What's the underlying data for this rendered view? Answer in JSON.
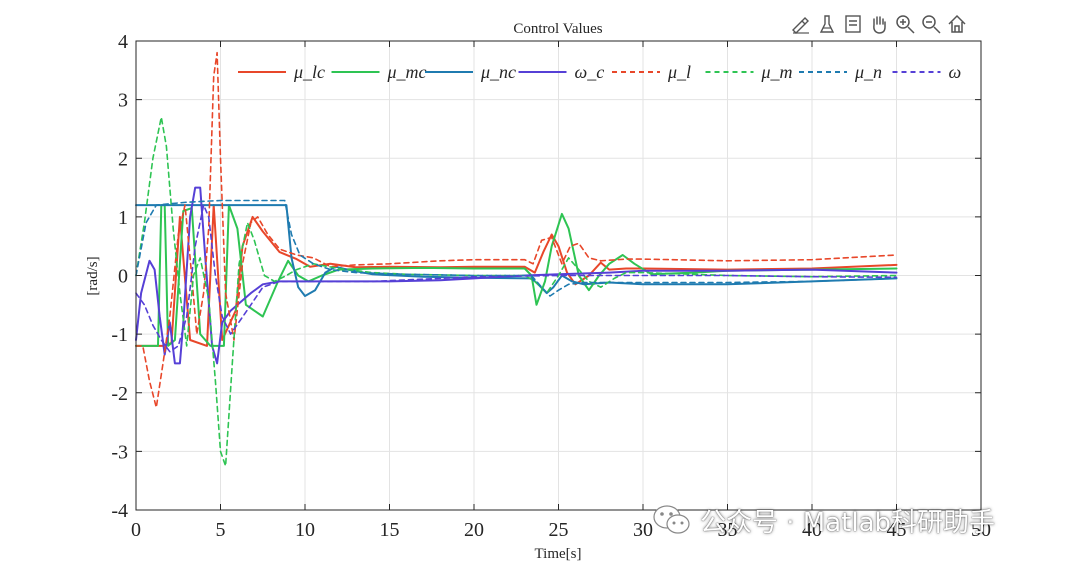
{
  "toolbar": {
    "icons": [
      "brush-data-icon",
      "clear-brush-icon",
      "data-cursor-icon",
      "pan-hand-icon",
      "zoom-in-icon",
      "zoom-out-icon",
      "home-restore-icon"
    ]
  },
  "watermark": {
    "text": "公众号 · Matlab科研助手"
  },
  "colors": {
    "mu_l": "#e8472a",
    "mu_m": "#2ec453",
    "mu_n": "#1f7bb0",
    "omega": "#5640d6"
  },
  "chart_data": {
    "type": "line",
    "title": "Control Values",
    "xlabel": "Time[s]",
    "ylabel": "[rad/s]",
    "xlim": [
      0,
      50
    ],
    "ylim": [
      -4,
      4
    ],
    "grid": true,
    "legend_position": "top",
    "x_ticks": [
      "0",
      "5",
      "10",
      "15",
      "20",
      "25",
      "30",
      "35",
      "40",
      "45",
      "50"
    ],
    "y_ticks": [
      "4",
      "3",
      "2",
      "1",
      "0",
      "-1",
      "-2",
      "-3",
      "-4"
    ],
    "series": [
      {
        "name": "μ_lc",
        "color_key": "mu_l",
        "dash": false,
        "points": [
          [
            0,
            -1.2
          ],
          [
            1.6,
            -1.2
          ],
          [
            2.1,
            -1.15
          ],
          [
            2.6,
            1.0
          ],
          [
            3.2,
            -1.1
          ],
          [
            4.2,
            -1.2
          ],
          [
            4.6,
            1.2
          ],
          [
            5.1,
            -1.1
          ],
          [
            5.9,
            -0.6
          ],
          [
            6.3,
            0.5
          ],
          [
            6.9,
            1.0
          ],
          [
            7.5,
            0.75
          ],
          [
            8.5,
            0.4
          ],
          [
            9.5,
            0.28
          ],
          [
            10.3,
            0.15
          ],
          [
            11.5,
            0.2
          ],
          [
            13,
            0.14
          ],
          [
            15,
            0.15
          ],
          [
            18,
            0.14
          ],
          [
            20,
            0.15
          ],
          [
            23,
            0.15
          ],
          [
            23.6,
            0.05
          ],
          [
            24.1,
            0.4
          ],
          [
            24.6,
            0.7
          ],
          [
            25,
            0.5
          ],
          [
            25.5,
            0.05
          ],
          [
            26,
            -0.15
          ],
          [
            26.8,
            0.0
          ],
          [
            27.5,
            0.22
          ],
          [
            28,
            0.1
          ],
          [
            29,
            0.12
          ],
          [
            30,
            0.12
          ],
          [
            35,
            0.1
          ],
          [
            40,
            0.12
          ],
          [
            45,
            0.18
          ]
        ]
      },
      {
        "name": "μ_mc",
        "color_key": "mu_m",
        "dash": false,
        "points": [
          [
            0,
            -1.2
          ],
          [
            1.3,
            -1.2
          ],
          [
            1.5,
            1.2
          ],
          [
            1.7,
            1.2
          ],
          [
            1.9,
            -1.2
          ],
          [
            2.3,
            -1.1
          ],
          [
            2.8,
            1.1
          ],
          [
            3.3,
            1.15
          ],
          [
            3.8,
            -1.0
          ],
          [
            4.4,
            -1.2
          ],
          [
            5.2,
            -1.2
          ],
          [
            5.5,
            1.2
          ],
          [
            6.0,
            0.8
          ],
          [
            6.5,
            -0.5
          ],
          [
            7.5,
            -0.7
          ],
          [
            8.4,
            -0.1
          ],
          [
            9.0,
            0.25
          ],
          [
            9.6,
            0.0
          ],
          [
            10.2,
            -0.1
          ],
          [
            11,
            0.0
          ],
          [
            12,
            0.1
          ],
          [
            14,
            0.12
          ],
          [
            17,
            0.13
          ],
          [
            20,
            0.12
          ],
          [
            23,
            0.12
          ],
          [
            23.4,
            0.0
          ],
          [
            23.7,
            -0.5
          ],
          [
            24.2,
            -0.1
          ],
          [
            24.6,
            0.5
          ],
          [
            25.2,
            1.05
          ],
          [
            25.6,
            0.8
          ],
          [
            26.2,
            0.0
          ],
          [
            26.8,
            -0.25
          ],
          [
            27.4,
            0.0
          ],
          [
            28,
            0.2
          ],
          [
            28.8,
            0.35
          ],
          [
            29.5,
            0.2
          ],
          [
            30.5,
            0.02
          ],
          [
            33,
            0.05
          ],
          [
            35,
            0.08
          ],
          [
            40,
            0.1
          ],
          [
            45,
            0.12
          ]
        ]
      },
      {
        "name": "μ_nc",
        "color_key": "mu_n",
        "dash": false,
        "points": [
          [
            0,
            1.2
          ],
          [
            4,
            1.2
          ],
          [
            5,
            1.2
          ],
          [
            8.9,
            1.2
          ],
          [
            9.2,
            0.3
          ],
          [
            9.6,
            -0.2
          ],
          [
            10.0,
            -0.35
          ],
          [
            10.6,
            -0.25
          ],
          [
            11.2,
            0.05
          ],
          [
            11.8,
            0.15
          ],
          [
            12.5,
            0.1
          ],
          [
            14,
            0.02
          ],
          [
            17,
            -0.02
          ],
          [
            20,
            -0.04
          ],
          [
            23.4,
            -0.05
          ],
          [
            23.8,
            -0.15
          ],
          [
            24.3,
            -0.3
          ],
          [
            24.7,
            -0.2
          ],
          [
            25.2,
            0.0
          ],
          [
            25.8,
            -0.1
          ],
          [
            26.5,
            -0.15
          ],
          [
            28,
            -0.12
          ],
          [
            30,
            -0.15
          ],
          [
            35,
            -0.15
          ],
          [
            40,
            -0.1
          ],
          [
            45,
            -0.05
          ]
        ]
      },
      {
        "name": "ω_c",
        "color_key": "omega",
        "dash": false,
        "points": [
          [
            0,
            -1.1
          ],
          [
            0.3,
            -0.3
          ],
          [
            0.8,
            0.25
          ],
          [
            1.1,
            0.1
          ],
          [
            1.4,
            -0.7
          ],
          [
            1.7,
            -1.35
          ],
          [
            2.0,
            -0.8
          ],
          [
            2.3,
            -1.5
          ],
          [
            2.6,
            -1.5
          ],
          [
            2.8,
            -0.8
          ],
          [
            3.2,
            1.0
          ],
          [
            3.5,
            1.5
          ],
          [
            3.8,
            1.5
          ],
          [
            4.1,
            0.3
          ],
          [
            4.5,
            -1.2
          ],
          [
            4.8,
            -1.5
          ],
          [
            5.1,
            -0.8
          ],
          [
            5.6,
            -0.6
          ],
          [
            6.2,
            -0.45
          ],
          [
            6.8,
            -0.3
          ],
          [
            7.5,
            -0.15
          ],
          [
            8.5,
            -0.1
          ],
          [
            10,
            -0.1
          ],
          [
            12,
            -0.1
          ],
          [
            15,
            -0.1
          ],
          [
            18,
            -0.08
          ],
          [
            20,
            -0.05
          ],
          [
            23,
            0.0
          ],
          [
            25,
            0.02
          ],
          [
            28,
            0.05
          ],
          [
            30,
            0.08
          ],
          [
            35,
            0.08
          ],
          [
            40,
            0.1
          ],
          [
            45,
            0.05
          ]
        ]
      },
      {
        "name": "μ_l",
        "color_key": "mu_l",
        "dash": true,
        "points": [
          [
            0,
            -1.2
          ],
          [
            0.4,
            -1.2
          ],
          [
            0.8,
            -1.8
          ],
          [
            1.2,
            -2.25
          ],
          [
            1.6,
            -1.5
          ],
          [
            2.0,
            -0.7
          ],
          [
            2.5,
            0.7
          ],
          [
            2.9,
            1.2
          ],
          [
            3.2,
            0.3
          ],
          [
            3.6,
            -1.0
          ],
          [
            4.0,
            -0.3
          ],
          [
            4.3,
            0.8
          ],
          [
            4.6,
            3.4
          ],
          [
            4.8,
            3.8
          ],
          [
            5.0,
            2.0
          ],
          [
            5.3,
            -0.3
          ],
          [
            5.8,
            -1.1
          ],
          [
            6.3,
            0.2
          ],
          [
            6.8,
            0.9
          ],
          [
            7.2,
            1.0
          ],
          [
            7.8,
            0.7
          ],
          [
            8.5,
            0.45
          ],
          [
            9.5,
            0.35
          ],
          [
            10.5,
            0.3
          ],
          [
            11.5,
            0.15
          ],
          [
            13,
            0.18
          ],
          [
            15,
            0.2
          ],
          [
            18,
            0.25
          ],
          [
            20,
            0.27
          ],
          [
            23,
            0.27
          ],
          [
            23.5,
            0.2
          ],
          [
            24,
            0.6
          ],
          [
            24.6,
            0.65
          ],
          [
            25.2,
            0.2
          ],
          [
            25.7,
            0.5
          ],
          [
            26.2,
            0.55
          ],
          [
            26.8,
            0.3
          ],
          [
            27.5,
            0.25
          ],
          [
            29,
            0.28
          ],
          [
            30,
            0.28
          ],
          [
            35,
            0.25
          ],
          [
            40,
            0.27
          ],
          [
            45,
            0.35
          ]
        ]
      },
      {
        "name": "μ_m",
        "color_key": "mu_m",
        "dash": true,
        "points": [
          [
            0,
            0.0
          ],
          [
            0.5,
            0.9
          ],
          [
            1.0,
            2.0
          ],
          [
            1.5,
            2.7
          ],
          [
            1.8,
            2.2
          ],
          [
            2.2,
            0.8
          ],
          [
            2.6,
            -0.3
          ],
          [
            3.0,
            -1.2
          ],
          [
            3.4,
            0.0
          ],
          [
            3.8,
            0.3
          ],
          [
            4.3,
            -0.4
          ],
          [
            4.7,
            -1.8
          ],
          [
            5.0,
            -3.0
          ],
          [
            5.3,
            -3.25
          ],
          [
            5.7,
            -1.5
          ],
          [
            6.1,
            0.2
          ],
          [
            6.6,
            0.9
          ],
          [
            7.0,
            0.6
          ],
          [
            7.6,
            0.0
          ],
          [
            8.2,
            -0.1
          ],
          [
            8.9,
            0.0
          ],
          [
            9.5,
            0.1
          ],
          [
            10.5,
            0.2
          ],
          [
            12,
            0.12
          ],
          [
            14,
            0.05
          ],
          [
            16,
            0.02
          ],
          [
            20,
            0.0
          ],
          [
            23,
            0.0
          ],
          [
            23.6,
            -0.1
          ],
          [
            24.3,
            -0.3
          ],
          [
            25,
            0.0
          ],
          [
            25.6,
            0.3
          ],
          [
            26.2,
            0.1
          ],
          [
            26.8,
            -0.1
          ],
          [
            27.5,
            -0.2
          ],
          [
            28.3,
            -0.05
          ],
          [
            29,
            0.05
          ],
          [
            30,
            0.05
          ],
          [
            35,
            0.0
          ],
          [
            40,
            -0.02
          ],
          [
            45,
            0.0
          ]
        ]
      },
      {
        "name": "μ_n",
        "color_key": "mu_n",
        "dash": true,
        "points": [
          [
            0,
            0.0
          ],
          [
            0.6,
            0.9
          ],
          [
            1.2,
            1.2
          ],
          [
            3,
            1.25
          ],
          [
            5,
            1.28
          ],
          [
            8.8,
            1.28
          ],
          [
            9.2,
            0.7
          ],
          [
            9.7,
            0.35
          ],
          [
            10.5,
            0.2
          ],
          [
            11.5,
            0.1
          ],
          [
            13,
            0.05
          ],
          [
            16,
            0.02
          ],
          [
            20,
            0.0
          ],
          [
            23.4,
            0.0
          ],
          [
            24,
            -0.2
          ],
          [
            24.5,
            -0.35
          ],
          [
            25,
            -0.25
          ],
          [
            25.6,
            -0.15
          ],
          [
            26.5,
            -0.12
          ],
          [
            28,
            -0.12
          ],
          [
            30,
            -0.12
          ],
          [
            35,
            -0.12
          ],
          [
            40,
            -0.1
          ],
          [
            45,
            -0.05
          ]
        ]
      },
      {
        "name": "ω",
        "color_key": "omega",
        "dash": true,
        "points": [
          [
            0,
            -0.3
          ],
          [
            0.5,
            -0.5
          ],
          [
            1.0,
            -0.85
          ],
          [
            1.5,
            -1.1
          ],
          [
            2.0,
            -1.3
          ],
          [
            2.5,
            -1.2
          ],
          [
            3.0,
            -0.7
          ],
          [
            3.5,
            0.5
          ],
          [
            4.0,
            1.2
          ],
          [
            4.3,
            1.0
          ],
          [
            4.7,
            0.0
          ],
          [
            5.1,
            -0.7
          ],
          [
            5.6,
            -1.0
          ],
          [
            6.2,
            -0.75
          ],
          [
            6.8,
            -0.5
          ],
          [
            7.5,
            -0.2
          ],
          [
            8.5,
            -0.1
          ],
          [
            10,
            -0.1
          ],
          [
            14,
            -0.1
          ],
          [
            18,
            -0.05
          ],
          [
            20,
            -0.02
          ],
          [
            25,
            0.0
          ],
          [
            30,
            0.0
          ],
          [
            35,
            0.0
          ],
          [
            40,
            -0.02
          ],
          [
            45,
            -0.03
          ]
        ]
      }
    ]
  }
}
